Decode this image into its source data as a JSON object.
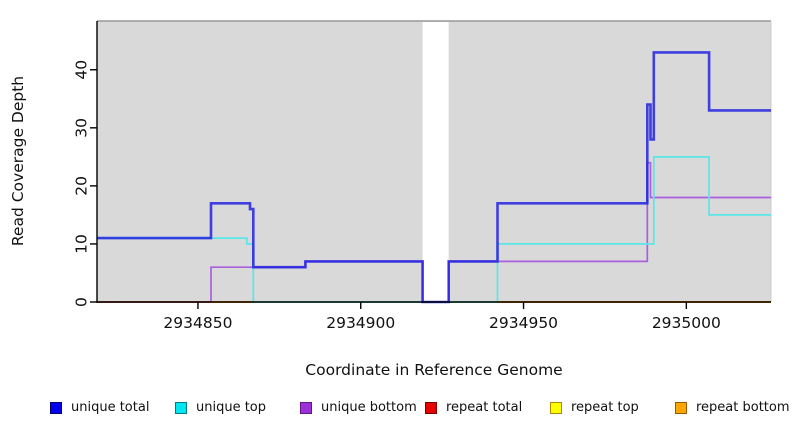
{
  "chart_data": {
    "type": "line",
    "subtype": "step-after",
    "title": "",
    "xlabel": "Coordinate in Reference Genome",
    "ylabel": "Read Coverage Depth",
    "xlim": [
      2934819,
      2935026
    ],
    "ylim": [
      0,
      48.4
    ],
    "x_ticks": [
      2934850,
      2934900,
      2934950,
      2935000
    ],
    "x_tick_labels": [
      "2934850",
      "2934900",
      "2934950",
      "2935000"
    ],
    "y_ticks": [
      0,
      10,
      20,
      30,
      40
    ],
    "y_tick_labels": [
      "0",
      "10",
      "20",
      "30",
      "40"
    ],
    "grid": false,
    "legend_position": "bottom",
    "plot_bg": "#d9d9d9",
    "panel_border_color": "#999999",
    "gap_region": {
      "x_start": 2934919,
      "x_end": 2934927,
      "color": "#ffffff"
    },
    "series": [
      {
        "name": "unique total",
        "color": "#2323e0",
        "width": 2.6,
        "opacity": 0.85,
        "paths": [
          [
            [
              2934819,
              11
            ],
            [
              2934854,
              17
            ],
            [
              2934866,
              16
            ],
            [
              2934867,
              6
            ],
            [
              2934883,
              7
            ],
            [
              2934919,
              0
            ],
            [
              2934927,
              7
            ],
            [
              2934942,
              17
            ],
            [
              2934988,
              34
            ],
            [
              2934989,
              28
            ],
            [
              2934990,
              43
            ],
            [
              2935007,
              33
            ],
            [
              2935026,
              33
            ]
          ]
        ]
      },
      {
        "name": "unique top",
        "color": "#58e6e9",
        "width": 1.7,
        "opacity": 1,
        "paths": [
          [
            [
              2934819,
              11
            ],
            [
              2934865,
              10
            ],
            [
              2934867,
              0
            ],
            [
              2934942,
              10
            ],
            [
              2934990,
              25
            ],
            [
              2935007,
              15
            ],
            [
              2935026,
              15
            ]
          ]
        ]
      },
      {
        "name": "unique bottom",
        "color": "#aa5fdf",
        "width": 1.7,
        "opacity": 1,
        "paths": [
          [
            [
              2934819,
              0
            ],
            [
              2934854,
              6
            ],
            [
              2934883,
              7
            ],
            [
              2934919,
              0
            ],
            [
              2934927,
              7
            ],
            [
              2934988,
              24
            ],
            [
              2934989,
              18
            ],
            [
              2935026,
              18
            ]
          ]
        ]
      },
      {
        "name": "repeat total",
        "color": "#d23b6b",
        "width": 1.7,
        "opacity": 1,
        "paths": [
          [
            [
              2934819,
              0
            ],
            [
              2935026,
              0
            ]
          ]
        ]
      },
      {
        "name": "repeat top",
        "color": "#f5f500",
        "width": 1.7,
        "opacity": 1,
        "paths": [
          [
            [
              2934819,
              0
            ],
            [
              2935026,
              0
            ]
          ]
        ]
      },
      {
        "name": "repeat bottom",
        "color": "#ff8c00",
        "width": 2.0,
        "opacity": 1,
        "paths": [
          [
            [
              2934854,
              0
            ],
            [
              2934867,
              0
            ]
          ],
          [
            [
              2934942,
              0
            ],
            [
              2935026,
              0
            ]
          ]
        ]
      }
    ],
    "baseline_overlays": [
      {
        "x0": 2934819,
        "x1": 2934854,
        "color": "#d23b6b",
        "width": 1.7
      },
      {
        "x0": 2934854,
        "x1": 2934867,
        "color": "#ff8c00",
        "width": 2.0
      },
      {
        "x0": 2934867,
        "x1": 2934942,
        "color": "#a8d8a8",
        "width": 1.7
      },
      {
        "x0": 2934942,
        "x1": 2935026,
        "color": "#ff8c00",
        "width": 2.0
      }
    ],
    "render_order": [
      "unique bottom",
      "repeat total",
      "repeat top",
      "repeat bottom",
      "baseline_overlays",
      "unique top",
      "unique total"
    ]
  },
  "legend": {
    "items": [
      {
        "label": "unique total",
        "fill": "#0000ee",
        "border": "#000066"
      },
      {
        "label": "unique top",
        "fill": "#00e5ee",
        "border": "#007a8a"
      },
      {
        "label": "unique bottom",
        "fill": "#9b30d9",
        "border": "#5c1a8a"
      },
      {
        "label": "repeat total",
        "fill": "#e60000",
        "border": "#7a0000"
      },
      {
        "label": "repeat top",
        "fill": "#ffff00",
        "border": "#aa8800"
      },
      {
        "label": "repeat bottom",
        "fill": "#ffa500",
        "border": "#935c00"
      }
    ]
  },
  "colors": {
    "axis": "#000000",
    "text": "#111111",
    "panel_bg": "#d9d9d9"
  }
}
